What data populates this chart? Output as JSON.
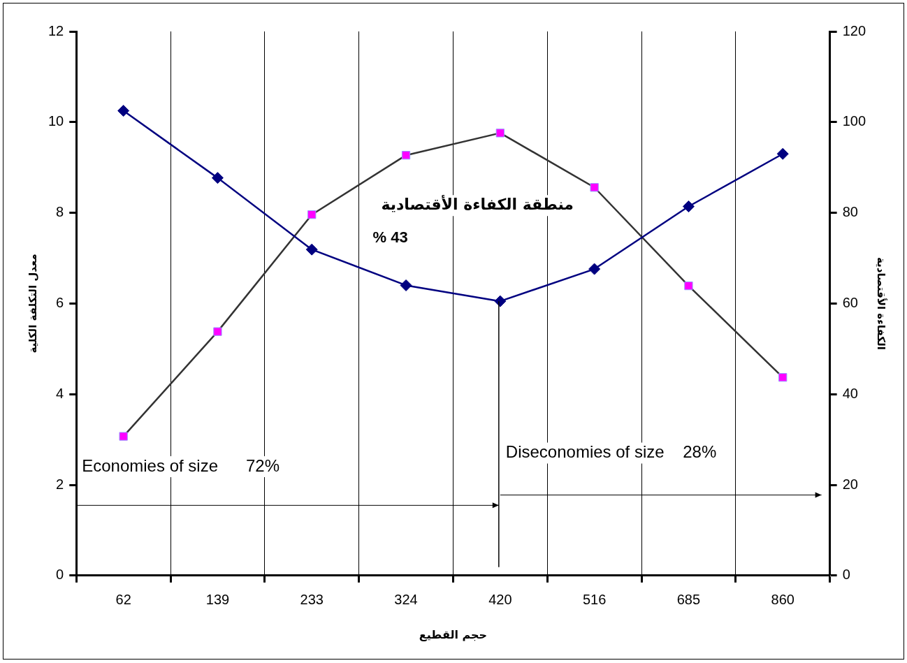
{
  "chart_data": {
    "type": "line",
    "xlabel": "حجم القطيع",
    "ylabel": "معدل التكلفة الكلية",
    "y2label": "الكفاءة الأقتصادية",
    "categories": [
      "62",
      "139",
      "233",
      "324",
      "420",
      "516",
      "685",
      "860"
    ],
    "series": [
      {
        "color": "#000080",
        "marker": "diamond",
        "values": [
          10.25,
          8.77,
          7.19,
          6.4,
          6.05,
          6.76,
          8.14,
          9.3
        ]
      },
      {
        "color": "#333333",
        "marker": "square",
        "axis": "y2",
        "values": [
          30.7,
          53.8,
          79.6,
          92.7,
          97.6,
          85.6,
          63.9,
          43.7
        ]
      }
    ],
    "ylim": [
      0,
      12
    ],
    "yticks": [
      0,
      2,
      4,
      6,
      8,
      10,
      12
    ],
    "y2lim": [
      0,
      120
    ],
    "y2ticks": [
      0,
      20,
      40,
      60,
      80,
      100,
      120
    ],
    "grid": "x",
    "legend": false,
    "ref_lines": [
      {
        "axis": "x",
        "value": "420",
        "color": "#000000"
      }
    ],
    "annotations": [
      "منطقة الكفاءة الأقتصادية",
      "% 43",
      "Economies of size      72%",
      "Diseconomies of size    28%"
    ]
  }
}
